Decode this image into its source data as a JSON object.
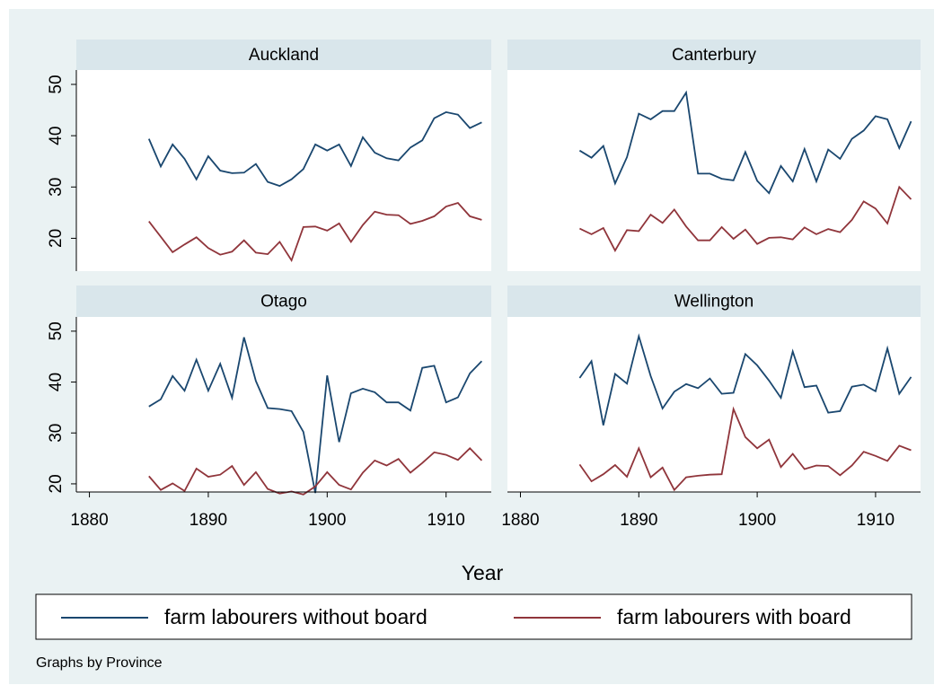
{
  "chart_data": {
    "type": "line",
    "x": [
      1885,
      1886,
      1887,
      1888,
      1889,
      1890,
      1891,
      1892,
      1893,
      1894,
      1895,
      1896,
      1897,
      1898,
      1899,
      1900,
      1901,
      1902,
      1903,
      1904,
      1905,
      1906,
      1907,
      1908,
      1909,
      1910,
      1911,
      1912,
      1913
    ],
    "xlim": [
      1878.9,
      1913.8
    ],
    "xticks": [
      1880,
      1890,
      1900,
      1910
    ],
    "yticks": [
      20,
      30,
      40,
      50
    ],
    "xlabel": "Year",
    "note": "Graphs by Province",
    "grid": false,
    "series": [
      {
        "name": "farm labourers without board",
        "color": "#1a476f"
      },
      {
        "name": "farm labourers with board",
        "color": "#90353b"
      }
    ],
    "panels": [
      {
        "title": "Auckland",
        "ylim": [
          13.6,
          52.8
        ],
        "values": [
          [
            39.4,
            34,
            38.3,
            35.5,
            31.5,
            36,
            33.2,
            32.7,
            32.8,
            34.5,
            31,
            30.2,
            31.5,
            33.5,
            38.3,
            37.1,
            38.3,
            34.1,
            39.7,
            36.7,
            35.6,
            35.2,
            37.7,
            39.1,
            43.4,
            44.6,
            44.1,
            41.5,
            42.6
          ],
          [
            23.3,
            20.3,
            17.3,
            18.8,
            20.2,
            18.1,
            16.8,
            17.4,
            19.6,
            17.2,
            16.9,
            19.3,
            15.7,
            22.2,
            22.3,
            21.5,
            22.9,
            19.3,
            22.6,
            25.2,
            24.6,
            24.5,
            22.8,
            23.4,
            24.3,
            26.2,
            26.9,
            24.3,
            23.6
          ]
        ]
      },
      {
        "title": "Canterbury",
        "ylim": [
          13.6,
          52.8
        ],
        "values": [
          [
            37.1,
            35.7,
            38,
            30.7,
            35.8,
            44.3,
            43.2,
            44.8,
            44.8,
            48.4,
            32.6,
            32.6,
            31.6,
            31.3,
            36.8,
            31.2,
            28.8,
            34.1,
            31.1,
            37.4,
            31.1,
            37.3,
            35.5,
            39.4,
            41,
            43.8,
            43.2,
            37.6,
            42.8
          ],
          [
            21.9,
            20.8,
            22,
            17.6,
            21.6,
            21.4,
            24.6,
            23,
            25.6,
            22.3,
            19.6,
            19.6,
            22.2,
            19.9,
            21.7,
            18.9,
            20.1,
            20.2,
            19.8,
            22.1,
            20.8,
            21.8,
            21.2,
            23.6,
            27.2,
            25.8,
            22.9,
            30,
            27.6
          ]
        ]
      },
      {
        "title": "Otago",
        "ylim": [
          18.4,
          52.8
        ],
        "values": [
          [
            35.2,
            36.6,
            41.2,
            38.3,
            44.4,
            38.3,
            43.6,
            36.9,
            48.8,
            40.2,
            34.9,
            34.7,
            34.3,
            30.2,
            18.2,
            41.3,
            28.2,
            37.8,
            38.7,
            38,
            36,
            36,
            34.4,
            42.8,
            43.2,
            36,
            37,
            41.7,
            44.1
          ],
          [
            21.5,
            18.8,
            20.1,
            18.6,
            23,
            21.4,
            21.8,
            23.5,
            19.8,
            22.3,
            19,
            18.1,
            18.5,
            17.9,
            19.5,
            22.3,
            19.8,
            18.9,
            22.2,
            24.6,
            23.6,
            24.9,
            22.2,
            24.1,
            26.2,
            25.7,
            24.7,
            27,
            24.6
          ]
        ]
      },
      {
        "title": "Wellington",
        "ylim": [
          18.4,
          52.8
        ],
        "values": [
          [
            40.8,
            44.1,
            31.5,
            41.6,
            39.7,
            49,
            41.2,
            34.8,
            38.1,
            39.6,
            38.8,
            40.7,
            37.7,
            37.9,
            45.5,
            43.3,
            40.3,
            36.9,
            46,
            39,
            39.3,
            34,
            34.3,
            39.1,
            39.5,
            38.2,
            46.6,
            37.7,
            41
          ],
          [
            23.8,
            20.5,
            21.9,
            23.7,
            21.4,
            27,
            21.3,
            23.2,
            18.8,
            21.3,
            21.6,
            21.8,
            21.9,
            34.7,
            29.2,
            27,
            28.7,
            23.3,
            25.9,
            22.9,
            23.6,
            23.5,
            21.7,
            23.6,
            26.3,
            25.5,
            24.5,
            27.5,
            26.6
          ]
        ]
      }
    ]
  }
}
